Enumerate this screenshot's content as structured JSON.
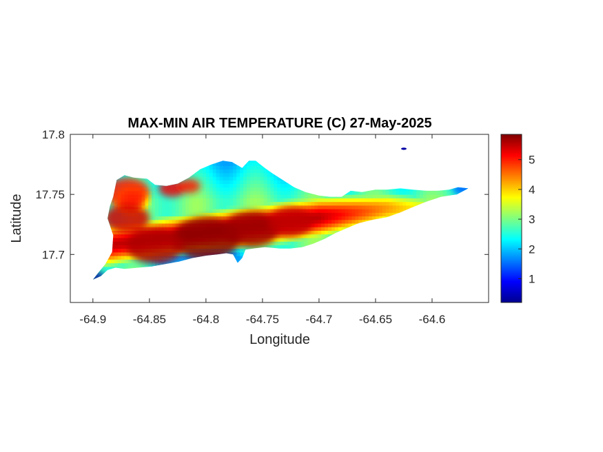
{
  "chart_data": {
    "type": "heatmap",
    "title": "MAX-MIN AIR TEMPERATURE (C) 27-May-2025",
    "xlabel": "Longitude",
    "ylabel": "Latitude",
    "xlim": [
      -64.92,
      -64.55
    ],
    "ylim": [
      17.66,
      17.8
    ],
    "xticks": [
      -64.9,
      -64.85,
      -64.8,
      -64.75,
      -64.7,
      -64.65,
      -64.6
    ],
    "xtick_labels": [
      "-64.9",
      "-64.85",
      "-64.8",
      "-64.75",
      "-64.7",
      "-64.65",
      "-64.6"
    ],
    "yticks": [
      17.7,
      17.75,
      17.8
    ],
    "ytick_labels": [
      "17.7",
      "17.75",
      "17.8"
    ],
    "colorbar": {
      "range": [
        0.2,
        5.85
      ],
      "ticks": [
        1,
        2,
        3,
        4,
        5
      ],
      "tick_labels": [
        "1",
        "2",
        "3",
        "4",
        "5"
      ],
      "colormap": "jet"
    },
    "outline": [
      [
        -64.882,
        17.748
      ],
      [
        -64.879,
        17.762
      ],
      [
        -64.872,
        17.766
      ],
      [
        -64.864,
        17.764
      ],
      [
        -64.852,
        17.763
      ],
      [
        -64.845,
        17.758
      ],
      [
        -64.835,
        17.757
      ],
      [
        -64.825,
        17.759
      ],
      [
        -64.815,
        17.764
      ],
      [
        -64.805,
        17.771
      ],
      [
        -64.795,
        17.775
      ],
      [
        -64.785,
        17.778
      ],
      [
        -64.777,
        17.777
      ],
      [
        -64.768,
        17.772
      ],
      [
        -64.762,
        17.778
      ],
      [
        -64.756,
        17.778
      ],
      [
        -64.748,
        17.772
      ],
      [
        -64.742,
        17.768
      ],
      [
        -64.732,
        17.762
      ],
      [
        -64.722,
        17.756
      ],
      [
        -64.712,
        17.752
      ],
      [
        -64.7,
        17.749
      ],
      [
        -64.69,
        17.748
      ],
      [
        -64.68,
        17.748
      ],
      [
        -64.672,
        17.753
      ],
      [
        -64.662,
        17.752
      ],
      [
        -64.65,
        17.754
      ],
      [
        -64.64,
        17.754
      ],
      [
        -64.628,
        17.755
      ],
      [
        -64.617,
        17.754
      ],
      [
        -64.605,
        17.753
      ],
      [
        -64.595,
        17.753
      ],
      [
        -64.585,
        17.754
      ],
      [
        -64.577,
        17.756
      ],
      [
        -64.568,
        17.755
      ],
      [
        -64.578,
        17.75
      ],
      [
        -64.592,
        17.748
      ],
      [
        -64.605,
        17.744
      ],
      [
        -64.618,
        17.739
      ],
      [
        -64.628,
        17.735
      ],
      [
        -64.64,
        17.731
      ],
      [
        -64.652,
        17.729
      ],
      [
        -64.665,
        17.726
      ],
      [
        -64.675,
        17.722
      ],
      [
        -64.685,
        17.718
      ],
      [
        -64.695,
        17.713
      ],
      [
        -64.705,
        17.709
      ],
      [
        -64.715,
        17.706
      ],
      [
        -64.725,
        17.705
      ],
      [
        -64.735,
        17.705
      ],
      [
        -64.748,
        17.706
      ],
      [
        -64.758,
        17.705
      ],
      [
        -64.765,
        17.704
      ],
      [
        -64.768,
        17.697
      ],
      [
        -64.772,
        17.693
      ],
      [
        -64.776,
        17.7
      ],
      [
        -64.782,
        17.701
      ],
      [
        -64.79,
        17.7
      ],
      [
        -64.8,
        17.699
      ],
      [
        -64.812,
        17.697
      ],
      [
        -64.824,
        17.694
      ],
      [
        -64.836,
        17.692
      ],
      [
        -64.848,
        17.69
      ],
      [
        -64.86,
        17.689
      ],
      [
        -64.872,
        17.688
      ],
      [
        -64.88,
        17.689
      ],
      [
        -64.887,
        17.687
      ],
      [
        -64.893,
        17.682
      ],
      [
        -64.9,
        17.679
      ],
      [
        -64.895,
        17.685
      ],
      [
        -64.889,
        17.692
      ],
      [
        -64.883,
        17.702
      ],
      [
        -64.882,
        17.716
      ],
      [
        -64.887,
        17.73
      ],
      [
        -64.885,
        17.74
      ]
    ],
    "islet": {
      "lon": -64.625,
      "lat": 17.788,
      "value": 0.4
    },
    "hotspots": [
      {
        "lon": -64.8,
        "lat": 17.713,
        "value": 5.8,
        "r": 0.03
      },
      {
        "lon": -64.845,
        "lat": 17.707,
        "value": 5.6,
        "r": 0.025
      },
      {
        "lon": -64.76,
        "lat": 17.721,
        "value": 5.7,
        "r": 0.025
      },
      {
        "lon": -64.725,
        "lat": 17.727,
        "value": 5.5,
        "r": 0.02
      },
      {
        "lon": -64.87,
        "lat": 17.752,
        "value": 5.0,
        "r": 0.02
      },
      {
        "lon": -64.87,
        "lat": 17.73,
        "value": 5.4,
        "r": 0.02
      },
      {
        "lon": -64.83,
        "lat": 17.755,
        "value": 5.2,
        "r": 0.012
      },
      {
        "lon": -64.815,
        "lat": 17.757,
        "value": 5.0,
        "r": 0.01
      },
      {
        "lon": -64.897,
        "lat": 17.681,
        "value": 0.4,
        "r": 0.008
      },
      {
        "lon": -64.572,
        "lat": 17.755,
        "value": 1.4,
        "r": 0.01
      }
    ]
  }
}
